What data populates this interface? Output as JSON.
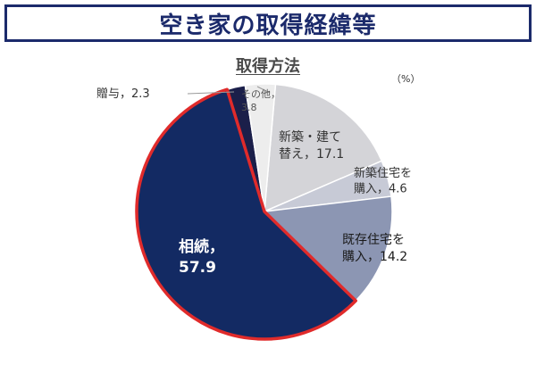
{
  "header": {
    "title": "空き家の取得経緯等"
  },
  "chart_data": {
    "type": "pie",
    "title": "取得方法",
    "unit": "（%）",
    "slices": [
      {
        "label": "新築・建て替え",
        "value": 17.1,
        "color": "#d4d4d8",
        "label_lines": [
          "新築・建て",
          "替え，17.1"
        ],
        "label_color": "#333333"
      },
      {
        "label": "新築住宅を購入",
        "value": 4.6,
        "color": "#c7cad6",
        "label_lines": [
          "新築住宅を",
          "購入，4.6"
        ],
        "label_color": "#333333"
      },
      {
        "label": "既存住宅を購入",
        "value": 14.2,
        "color": "#8c96b3",
        "label_lines": [
          "既存住宅を",
          "購入，14.2"
        ],
        "label_color": "#1a1a1a"
      },
      {
        "label": "相続",
        "value": 57.9,
        "color": "#132a63",
        "label_lines": [
          "相続，",
          "57.9"
        ],
        "label_color": "#ffffff",
        "highlight": "#e02b2b"
      },
      {
        "label": "贈与",
        "value": 2.3,
        "color": "#1b1f4a",
        "label_lines": [
          "贈与，2.3"
        ],
        "label_color": "#333333"
      },
      {
        "label": "その他",
        "value": 3.8,
        "color": "#ededed",
        "label_lines": [
          "その他，",
          "3.8"
        ],
        "label_color": "#555555"
      }
    ]
  }
}
